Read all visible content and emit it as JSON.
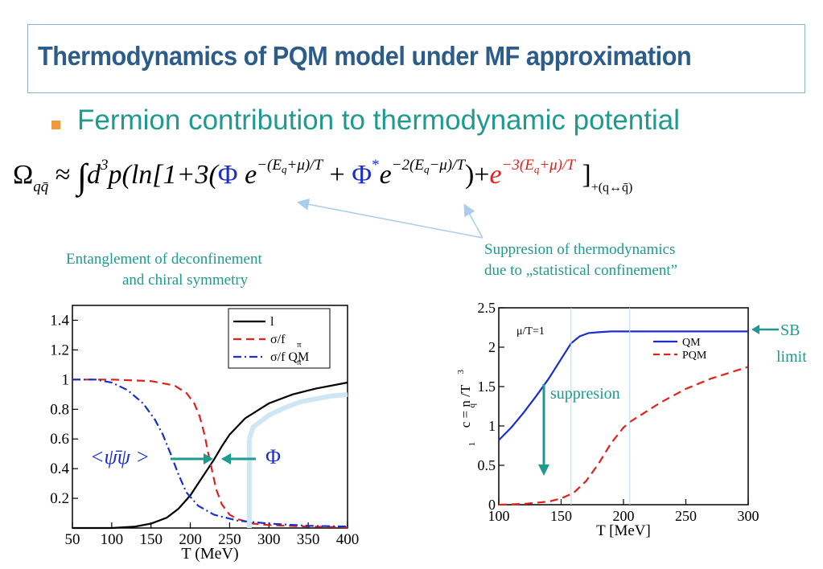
{
  "slide": {
    "title": "Thermodynamics of PQM model under MF approximation",
    "bullet": "Fermion contribution to thermodynamic potential",
    "formula_parts": {
      "omega": "Ω",
      "omega_sub": "qq̄",
      "approx": "≈",
      "integral": "∫",
      "d3p": "d",
      "d3p_exp": "3",
      "p_ln": "p(ln[1+3(",
      "phi": "Φ",
      "e1": "e",
      "e1_exp": "−(E",
      "e1_exp_sub": "q",
      "e1_exp_end": "+μ)/T",
      "plus1": "+",
      "phi_star": "Φ",
      "star": "*",
      "e2": "e",
      "e2_exp": "−2(E",
      "e2_exp_sub": "q",
      "e2_exp_end": "−μ)/T",
      "close1": ")+",
      "e3": "e",
      "e3_exp": "−3(E",
      "e3_exp_sub": "q",
      "e3_exp_end": "+μ)/T",
      "close2": "]",
      "tail": "+(q↔q̄)"
    },
    "annotation_right": [
      "Suppresion of thermodynamics",
      "due to „statistical  confinement”"
    ],
    "annotation_left": [
      "Entanglement of deconfinement",
      "and chiral symmetry"
    ],
    "colors": {
      "title": "#2c5d8a",
      "accent_teal": "#1f9a8e",
      "bullet": "#f0993a",
      "blue": "#1a2fc9",
      "red": "#e0201a"
    }
  },
  "chart_data": [
    {
      "type": "line",
      "xlabel": "T (MeV)",
      "ylabel": "",
      "xlim": [
        50,
        400
      ],
      "ylim": [
        0,
        1.5
      ],
      "xticks": [
        50,
        100,
        150,
        200,
        250,
        300,
        350,
        400
      ],
      "yticks": [
        0.2,
        0.4,
        0.6,
        0.8,
        1,
        1.2,
        1.4
      ],
      "legend_position": "top-right",
      "legend": [
        "l",
        "σ/f",
        "σ/f  QM"
      ],
      "legend_subscripts": [
        "",
        "π",
        "π"
      ],
      "series": [
        {
          "name": "l",
          "color": "#000000",
          "dash": "solid",
          "x": [
            50,
            100,
            130,
            150,
            170,
            185,
            200,
            210,
            220,
            230,
            240,
            250,
            270,
            300,
            330,
            360,
            400
          ],
          "y": [
            0,
            0,
            0.01,
            0.03,
            0.07,
            0.13,
            0.22,
            0.3,
            0.38,
            0.46,
            0.55,
            0.63,
            0.74,
            0.84,
            0.9,
            0.94,
            0.98
          ]
        },
        {
          "name": "σ/f",
          "color": "#e0201a",
          "dash": "dashed",
          "x": [
            50,
            100,
            150,
            180,
            195,
            205,
            212,
            218,
            223,
            228,
            233,
            240,
            250,
            260,
            280,
            300,
            350,
            400
          ],
          "y": [
            1,
            1,
            0.99,
            0.96,
            0.91,
            0.84,
            0.75,
            0.63,
            0.5,
            0.38,
            0.26,
            0.16,
            0.09,
            0.06,
            0.03,
            0.02,
            0.01,
            0.005
          ]
        },
        {
          "name": "σ/f  QM",
          "color": "#1a2fc9",
          "dash": "dashdot",
          "x": [
            50,
            80,
            100,
            120,
            140,
            155,
            165,
            175,
            185,
            195,
            210,
            230,
            260,
            300,
            350,
            400
          ],
          "y": [
            1,
            1,
            0.98,
            0.93,
            0.84,
            0.73,
            0.63,
            0.5,
            0.36,
            0.24,
            0.15,
            0.09,
            0.05,
            0.03,
            0.015,
            0.01
          ]
        },
        {
          "name": "",
          "color": "#cfe6f5",
          "dash": "solid",
          "x": [
            275,
            280,
            290,
            300,
            320,
            340,
            360,
            380,
            400
          ],
          "y": [
            0.6,
            0.68,
            0.72,
            0.76,
            0.81,
            0.85,
            0.87,
            0.89,
            0.9
          ]
        }
      ],
      "annotations": {
        "condensate": "<ψ̄ψ >",
        "phi": "Φ"
      }
    },
    {
      "type": "line",
      "xlabel": "T [MeV]",
      "ylabel": "c  = n /T",
      "ylabel_parts": {
        "c_sub": "1",
        "n_sub": "q",
        "t_exp": "3"
      },
      "xlim": [
        100,
        300
      ],
      "ylim": [
        0,
        2.5
      ],
      "xticks": [
        100,
        150,
        200,
        250,
        300
      ],
      "yticks": [
        0,
        0.5,
        1,
        1.5,
        2,
        2.5
      ],
      "legend_position": "top-right",
      "legend": [
        "QM",
        "PQM"
      ],
      "series": [
        {
          "name": "QM",
          "color": "#1a2fc9",
          "dash": "solid",
          "x": [
            100,
            110,
            120,
            130,
            140,
            150,
            158,
            165,
            172,
            180,
            190,
            200,
            250,
            300
          ],
          "y": [
            0.82,
            0.98,
            1.17,
            1.38,
            1.6,
            1.85,
            2.05,
            2.14,
            2.18,
            2.19,
            2.2,
            2.2,
            2.2,
            2.2
          ]
        },
        {
          "name": "PQM",
          "color": "#e0201a",
          "dash": "dashed",
          "x": [
            100,
            120,
            140,
            150,
            160,
            170,
            180,
            190,
            200,
            205,
            215,
            230,
            250,
            270,
            300
          ],
          "y": [
            0,
            0.01,
            0.04,
            0.08,
            0.15,
            0.3,
            0.52,
            0.78,
            0.98,
            1.05,
            1.15,
            1.3,
            1.47,
            1.6,
            1.75
          ]
        }
      ],
      "annotations": {
        "mu_label": "μ/T=1",
        "suppression": "suppresion",
        "sb": "SB",
        "limit": "limit"
      }
    }
  ]
}
